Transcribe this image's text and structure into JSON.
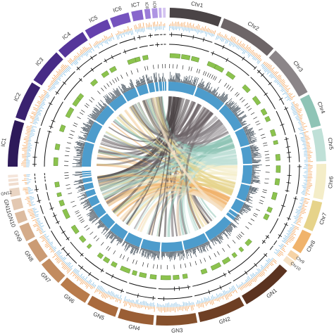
{
  "chr": [
    "Chr1",
    "Chr2",
    "Chr3",
    "Chr4",
    "Chr5",
    "Chr6",
    "Chr7",
    "Chr8",
    "Chr9",
    "Chr10"
  ],
  "gn": [
    "GN1",
    "GN2",
    "GN3",
    "GN4",
    "GN5",
    "GN6",
    "GN7",
    "GN8",
    "GN9",
    "GN10",
    "GN11",
    "GN12"
  ],
  "ic": [
    "IC1",
    "IC2",
    "IC3",
    "IC4",
    "IC5",
    "IC6",
    "IC7",
    "IC8",
    "IC9"
  ]
}
